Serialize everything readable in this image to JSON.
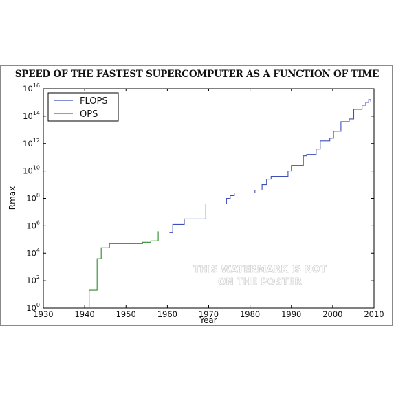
{
  "chart_data": {
    "type": "line",
    "title": "SPEED OF THE FASTEST SUPERCOMPUTER AS A FUNCTION OF TIME",
    "xlabel": "Year",
    "ylabel": "Rmax",
    "xlim": [
      1930,
      2010
    ],
    "ylim_exp": [
      0,
      16
    ],
    "yscale": "log",
    "x_ticks": [
      "1930",
      "1940",
      "1950",
      "1960",
      "1970",
      "1980",
      "1990",
      "2000",
      "2010"
    ],
    "y_tick_base": "10",
    "y_tick_exponents": [
      "0",
      "2",
      "4",
      "6",
      "8",
      "10",
      "12",
      "14",
      "16"
    ],
    "legend_position": "top-left",
    "grid": false,
    "series": [
      {
        "name": "FLOPS",
        "color": "#3f4fb8",
        "points": [
          [
            1960.5,
            5.5
          ],
          [
            1961.3,
            5.5
          ],
          [
            1961.3,
            6.1
          ],
          [
            1964.1,
            6.1
          ],
          [
            1964.1,
            6.5
          ],
          [
            1969.3,
            6.5
          ],
          [
            1969.3,
            7.6
          ],
          [
            1974.3,
            7.6
          ],
          [
            1974.3,
            8.0
          ],
          [
            1975.2,
            8.0
          ],
          [
            1975.2,
            8.2
          ],
          [
            1976.2,
            8.2
          ],
          [
            1976.2,
            8.4
          ],
          [
            1981.2,
            8.4
          ],
          [
            1981.2,
            8.6
          ],
          [
            1982.9,
            8.6
          ],
          [
            1982.9,
            9.0
          ],
          [
            1984.0,
            9.0
          ],
          [
            1984.0,
            9.4
          ],
          [
            1985.1,
            9.4
          ],
          [
            1985.1,
            9.6
          ],
          [
            1989.2,
            9.6
          ],
          [
            1989.2,
            10.0
          ],
          [
            1990.0,
            10.0
          ],
          [
            1990.0,
            10.4
          ],
          [
            1992.9,
            10.4
          ],
          [
            1992.9,
            11.1
          ],
          [
            1993.7,
            11.1
          ],
          [
            1993.7,
            11.2
          ],
          [
            1996.0,
            11.2
          ],
          [
            1996.0,
            11.6
          ],
          [
            1997.0,
            11.6
          ],
          [
            1997.0,
            12.2
          ],
          [
            1999.3,
            12.2
          ],
          [
            1999.3,
            12.4
          ],
          [
            2000.2,
            12.4
          ],
          [
            2000.2,
            12.9
          ],
          [
            2002.0,
            12.9
          ],
          [
            2002.0,
            13.6
          ],
          [
            2004.0,
            13.6
          ],
          [
            2004.0,
            13.8
          ],
          [
            2005.1,
            13.8
          ],
          [
            2005.1,
            14.5
          ],
          [
            2007.1,
            14.5
          ],
          [
            2007.1,
            14.8
          ],
          [
            2008.0,
            14.8
          ],
          [
            2008.0,
            15.0
          ],
          [
            2008.7,
            15.0
          ],
          [
            2008.7,
            15.2
          ],
          [
            2009.2,
            15.2
          ],
          [
            2009.2,
            15.0
          ]
        ]
      },
      {
        "name": "OPS",
        "color": "#2e8b2e",
        "points": [
          [
            1941.1,
            0
          ],
          [
            1941.1,
            1.3
          ],
          [
            1943.0,
            1.3
          ],
          [
            1943.0,
            3.6
          ],
          [
            1944.0,
            3.6
          ],
          [
            1944.0,
            4.4
          ],
          [
            1946.0,
            4.4
          ],
          [
            1946.0,
            4.7
          ],
          [
            1954.0,
            4.7
          ],
          [
            1954.0,
            4.8
          ],
          [
            1956.0,
            4.8
          ],
          [
            1956.0,
            4.9
          ],
          [
            1957.8,
            4.9
          ],
          [
            1957.8,
            5.6
          ]
        ]
      }
    ],
    "annotation": [
      "THIS WATERMARK IS NOT",
      "ON THE POSTER"
    ]
  }
}
